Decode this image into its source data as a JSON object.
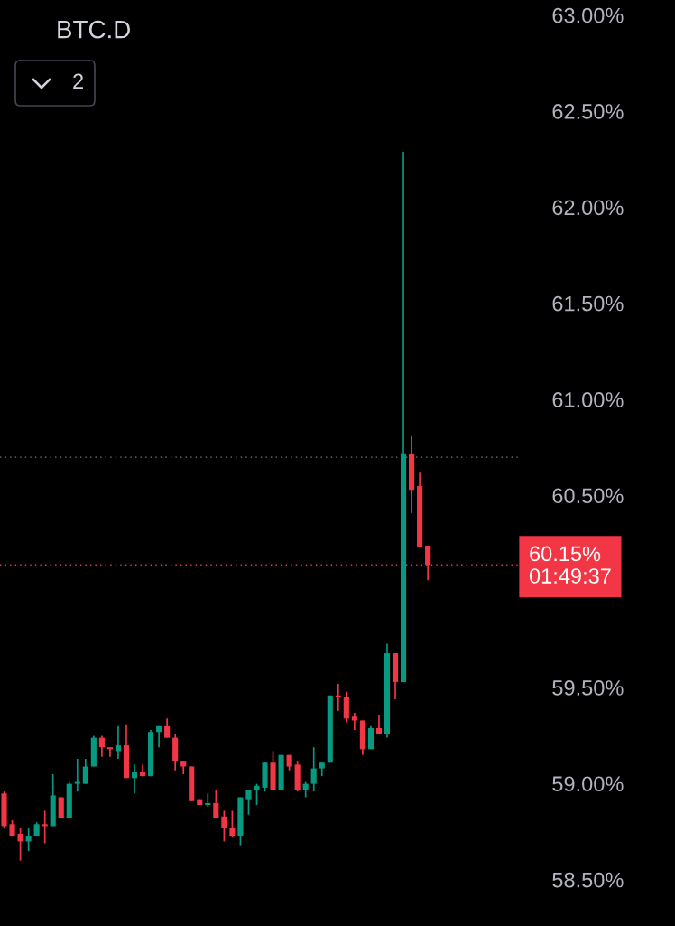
{
  "chart_data": {
    "type": "candlestick",
    "title": "BTC.D",
    "categories": [
      null,
      null,
      null,
      null,
      null,
      null,
      null,
      null,
      null,
      null,
      null,
      null,
      null,
      null,
      null,
      null,
      null,
      null,
      null,
      null,
      null,
      null,
      null,
      null,
      null,
      null,
      null,
      null,
      null,
      null,
      null,
      null,
      null,
      null,
      null,
      null,
      null,
      null,
      null,
      null,
      null,
      null,
      null,
      null,
      null,
      null,
      null,
      null,
      null,
      null,
      null,
      null,
      null,
      null,
      null,
      null,
      null,
      null,
      null,
      null,
      null,
      null,
      null,
      null
    ],
    "ohlc": [
      [
        58.96,
        58.97,
        58.78,
        58.79
      ],
      [
        58.8,
        58.82,
        58.74,
        58.74
      ],
      [
        58.75,
        58.78,
        58.61,
        58.71
      ],
      [
        58.71,
        58.78,
        58.66,
        58.74
      ],
      [
        58.74,
        58.81,
        58.74,
        58.8
      ],
      [
        58.8,
        58.87,
        58.7,
        58.79
      ],
      [
        58.79,
        59.06,
        58.79,
        58.95
      ],
      [
        58.94,
        58.94,
        58.83,
        58.83
      ],
      [
        58.83,
        59.02,
        58.83,
        59.01
      ],
      [
        59.01,
        59.14,
        58.97,
        59.02
      ],
      [
        59.01,
        59.14,
        59.01,
        59.1
      ],
      [
        59.1,
        59.26,
        59.1,
        59.25
      ],
      [
        59.25,
        59.26,
        59.15,
        59.2
      ],
      [
        59.2,
        59.2,
        59.15,
        59.19
      ],
      [
        59.18,
        59.31,
        59.14,
        59.21
      ],
      [
        59.21,
        59.32,
        59.04,
        59.04
      ],
      [
        59.04,
        59.11,
        58.96,
        59.07
      ],
      [
        59.07,
        59.11,
        59.05,
        59.05
      ],
      [
        59.05,
        59.29,
        59.05,
        59.28
      ],
      [
        59.28,
        59.31,
        59.2,
        59.31
      ],
      [
        59.31,
        59.35,
        59.25,
        59.25
      ],
      [
        59.25,
        59.27,
        59.08,
        59.13
      ],
      [
        59.13,
        59.13,
        59.06,
        59.1
      ],
      [
        59.1,
        59.1,
        58.92,
        58.92
      ],
      [
        58.93,
        58.93,
        58.9,
        58.9
      ],
      [
        58.9,
        58.96,
        58.89,
        58.91
      ],
      [
        58.91,
        58.98,
        58.83,
        58.83
      ],
      [
        58.84,
        58.87,
        58.71,
        58.78
      ],
      [
        58.78,
        58.87,
        58.73,
        58.74
      ],
      [
        58.74,
        58.94,
        58.69,
        58.94
      ],
      [
        58.93,
        58.98,
        58.85,
        58.98
      ],
      [
        58.98,
        59.01,
        58.9,
        59.0
      ],
      [
        58.99,
        59.12,
        58.97,
        59.12
      ],
      [
        59.12,
        59.18,
        58.98,
        58.98
      ],
      [
        58.98,
        59.16,
        58.98,
        59.16
      ],
      [
        59.16,
        59.16,
        59.08,
        59.1
      ],
      [
        59.11,
        59.13,
        58.97,
        58.98
      ],
      [
        58.98,
        59.02,
        58.94,
        59.01
      ],
      [
        59.01,
        59.2,
        58.97,
        59.09
      ],
      [
        59.09,
        59.12,
        59.05,
        59.12
      ],
      [
        59.12,
        59.47,
        59.12,
        59.47
      ],
      [
        59.47,
        59.53,
        59.39,
        59.46
      ],
      [
        59.46,
        59.49,
        59.33,
        59.35
      ],
      [
        59.36,
        59.38,
        59.29,
        59.34
      ],
      [
        59.34,
        59.34,
        59.16,
        59.19
      ],
      [
        59.19,
        59.31,
        59.19,
        59.3
      ],
      [
        59.3,
        59.37,
        59.27,
        59.27
      ],
      [
        59.27,
        59.74,
        59.25,
        59.69
      ],
      [
        59.69,
        59.69,
        59.45,
        59.54
      ],
      [
        59.54,
        62.3,
        59.54,
        60.73
      ],
      [
        60.73,
        60.82,
        60.42,
        60.54
      ],
      [
        60.56,
        60.63,
        60.24,
        60.24
      ],
      [
        60.25,
        60.25,
        60.07,
        60.15
      ],
      null,
      null,
      null,
      null,
      null,
      null,
      null,
      null,
      null,
      null,
      null
    ],
    "ylim": [
      58.27,
      63.09
    ],
    "yticks": [
      {
        "value": 58.5,
        "label": "58.50%"
      },
      {
        "value": 59.0,
        "label": "59.00%"
      },
      {
        "value": 59.5,
        "label": "59.50%"
      },
      {
        "value": 60.5,
        "label": "60.50%"
      },
      {
        "value": 61.0,
        "label": "61.00%"
      },
      {
        "value": 61.5,
        "label": "61.50%"
      },
      {
        "value": 62.0,
        "label": "62.00%"
      },
      {
        "value": 62.5,
        "label": "62.50%"
      },
      {
        "value": 63.0,
        "label": "63.00%"
      }
    ],
    "tick_labels": "y",
    "grid": false,
    "ref_lines": [
      {
        "axis": "y",
        "value": 60.71,
        "color": "#787b86",
        "line_style": "dotted"
      },
      {
        "axis": "y",
        "value": 60.15,
        "label": "60.15%",
        "color": "#f23645",
        "line_style": "dotted"
      }
    ],
    "annotations": [
      "01:49:37",
      "2"
    ]
  }
}
